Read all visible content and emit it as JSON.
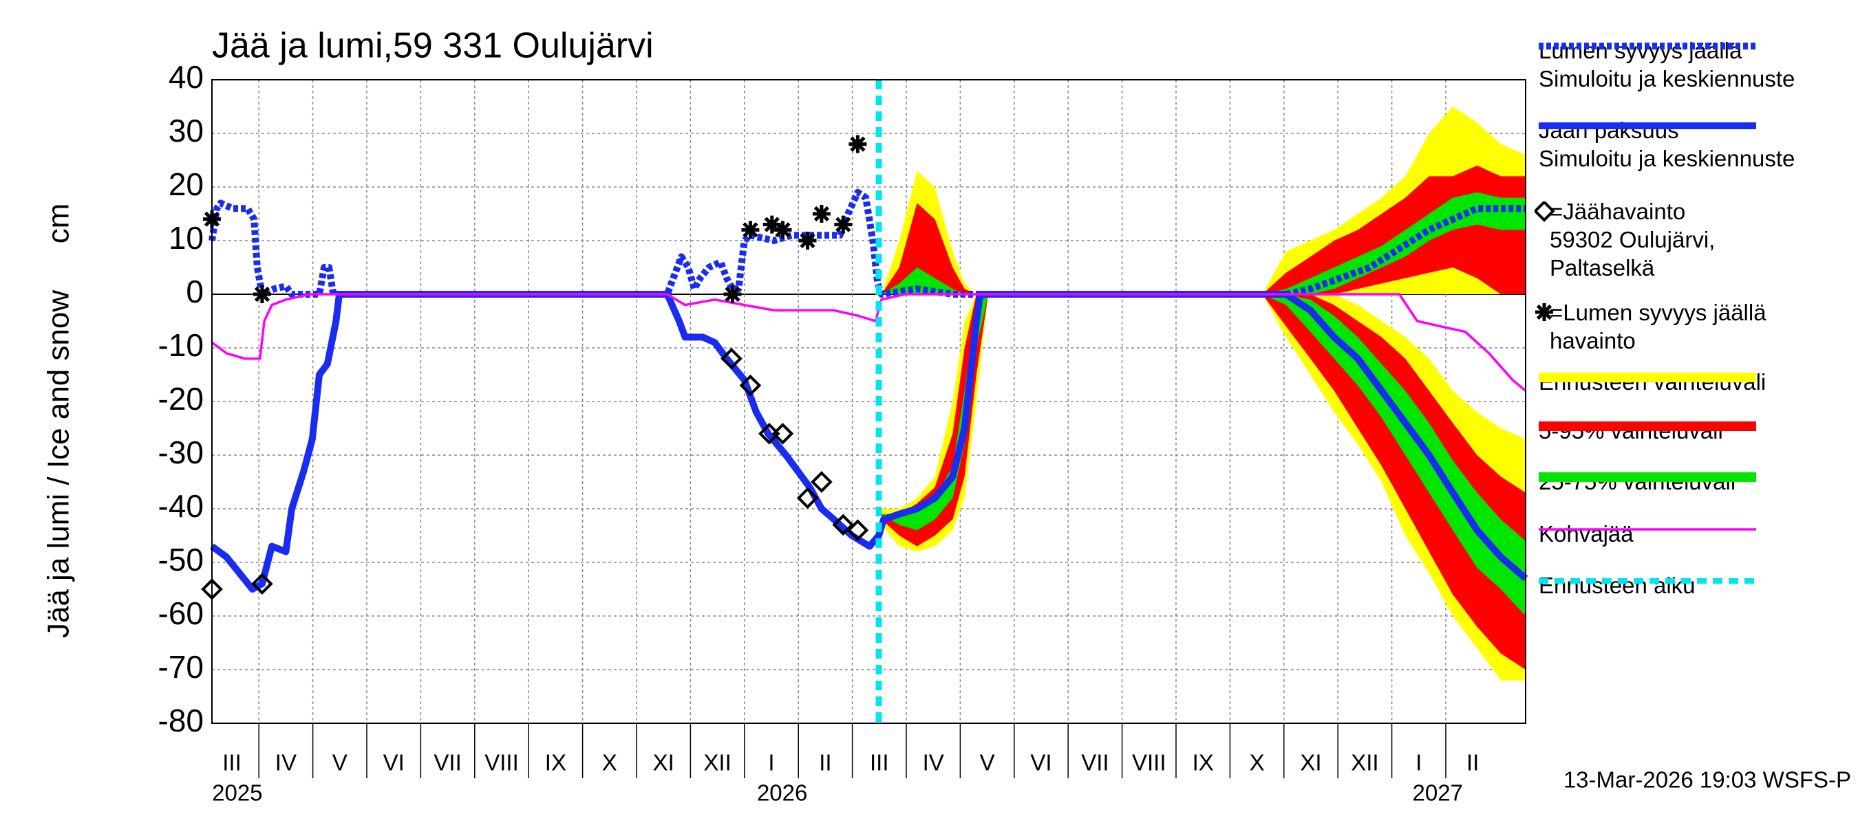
{
  "chart_data": {
    "type": "line",
    "title": "Jää ja lumi,59 331 Oulujärvi",
    "y_label": "Jää ja lumi / Ice and snow",
    "y_unit": "cm",
    "ylim": [
      -80,
      40
    ],
    "yticks": [
      -80,
      -70,
      -60,
      -50,
      -40,
      -30,
      -20,
      -10,
      0,
      10,
      20,
      30,
      40
    ],
    "xlim": [
      0.13,
      24.48
    ],
    "grid": true,
    "xticks": [
      {
        "value": 0.5,
        "label": "III"
      },
      {
        "value": 1.5,
        "label": "IV"
      },
      {
        "value": 2.5,
        "label": "V"
      },
      {
        "value": 3.5,
        "label": "VI"
      },
      {
        "value": 4.5,
        "label": "VII"
      },
      {
        "value": 5.5,
        "label": "VIII"
      },
      {
        "value": 6.5,
        "label": "IX"
      },
      {
        "value": 7.5,
        "label": "X"
      },
      {
        "value": 8.5,
        "label": "XI"
      },
      {
        "value": 9.5,
        "label": "XII"
      },
      {
        "value": 10.5,
        "label": "I"
      },
      {
        "value": 11.5,
        "label": "II"
      },
      {
        "value": 12.5,
        "label": "III"
      },
      {
        "value": 13.5,
        "label": "IV"
      },
      {
        "value": 14.5,
        "label": "V"
      },
      {
        "value": 15.5,
        "label": "VI"
      },
      {
        "value": 16.5,
        "label": "VII"
      },
      {
        "value": 17.5,
        "label": "VIII"
      },
      {
        "value": 18.5,
        "label": "IX"
      },
      {
        "value": 19.5,
        "label": "X"
      },
      {
        "value": 20.5,
        "label": "XI"
      },
      {
        "value": 21.5,
        "label": "XII"
      },
      {
        "value": 22.5,
        "label": "I"
      },
      {
        "value": 23.5,
        "label": "II"
      }
    ],
    "years": [
      {
        "value": 0.6,
        "label": "2025"
      },
      {
        "value": 10.7,
        "label": "2026"
      },
      {
        "value": 22.85,
        "label": "2027"
      }
    ],
    "bands": [
      {
        "name": "Ennusteen vaihteluväli",
        "color": "#ffff00",
        "segments": [
          {
            "x": [
              12.54,
              12.87,
              13.2,
              13.53,
              13.86,
              14.08,
              14.3,
              14.52
            ],
            "low": [
              -43,
              -47,
              -48,
              -47,
              -44,
              -38,
              -20,
              0
            ],
            "high": [
              -40,
              -40,
              -38,
              -34,
              -20,
              -5,
              0,
              0
            ]
          },
          {
            "x": [
              12.54,
              12.87,
              13.2,
              13.53,
              13.86,
              14.08,
              14.3,
              14.52
            ],
            "low": [
              0,
              0,
              0,
              0,
              0,
              0,
              0,
              0
            ],
            "high": [
              0,
              10,
              23,
              20,
              8,
              2,
              0,
              0
            ]
          },
          {
            "x": [
              19.6,
              20.04,
              20.49,
              20.93,
              21.37,
              21.81,
              22.25,
              22.69,
              23.13,
              23.58,
              24.02,
              24.48
            ],
            "low": [
              0,
              -8,
              -15,
              -22,
              -28,
              -35,
              -45,
              -52,
              -60,
              -66,
              -72,
              -72
            ],
            "high": [
              0,
              0,
              0,
              0,
              -2,
              -5,
              -8,
              -12,
              -18,
              -22,
              -25,
              -27
            ]
          },
          {
            "x": [
              19.6,
              20.04,
              20.49,
              20.93,
              21.37,
              21.81,
              22.25,
              22.69,
              23.13,
              23.58,
              24.02,
              24.48
            ],
            "low": [
              0,
              0,
              0,
              0,
              0,
              0,
              0,
              0,
              0,
              0,
              0,
              0
            ],
            "high": [
              0,
              8,
              10,
              12,
              15,
              18,
              22,
              30,
              35,
              32,
              28,
              26
            ]
          }
        ]
      },
      {
        "name": "5-95% vaihteluväli",
        "color": "#ff0000",
        "segments": [
          {
            "x": [
              12.54,
              12.87,
              13.2,
              13.53,
              13.86,
              14.08,
              14.3,
              14.52
            ],
            "low": [
              -42,
              -45,
              -47,
              -45,
              -42,
              -34,
              -15,
              0
            ],
            "high": [
              -41,
              -41,
              -39,
              -36,
              -26,
              -10,
              0,
              0
            ]
          },
          {
            "x": [
              12.54,
              12.87,
              13.2,
              13.53,
              13.86,
              14.08,
              14.3,
              14.52
            ],
            "low": [
              0,
              0,
              0,
              0,
              0,
              0,
              0,
              0
            ],
            "high": [
              0,
              5,
              17,
              14,
              5,
              1,
              0,
              0
            ]
          },
          {
            "x": [
              19.6,
              20.04,
              20.49,
              20.93,
              21.37,
              21.81,
              22.25,
              22.69,
              23.13,
              23.58,
              24.02,
              24.48
            ],
            "low": [
              0,
              -6,
              -12,
              -18,
              -25,
              -32,
              -40,
              -48,
              -56,
              -62,
              -67,
              -70
            ],
            "high": [
              0,
              0,
              0,
              -2,
              -5,
              -8,
              -12,
              -18,
              -24,
              -30,
              -34,
              -37
            ]
          },
          {
            "x": [
              19.6,
              20.04,
              20.49,
              20.93,
              21.37,
              21.81,
              22.25,
              22.69,
              23.13,
              23.58,
              24.02,
              24.48
            ],
            "low": [
              0,
              0,
              0,
              0,
              1,
              2,
              3,
              4,
              5,
              3,
              0,
              0
            ],
            "high": [
              0,
              4,
              7,
              10,
              12,
              15,
              18,
              22,
              22,
              24,
              22,
              22
            ]
          }
        ]
      },
      {
        "name": "25-75% vaihteluväli",
        "color": "#00e600",
        "segments": [
          {
            "x": [
              12.54,
              12.87,
              13.2,
              13.53,
              13.86,
              14.08,
              14.3,
              14.52
            ],
            "low": [
              -41,
              -43,
              -44,
              -42,
              -38,
              -28,
              -10,
              0
            ],
            "high": [
              -41,
              -41,
              -40,
              -38,
              -32,
              -18,
              -2,
              0
            ]
          },
          {
            "x": [
              12.54,
              12.87,
              13.2,
              13.53,
              13.86,
              14.08,
              14.3,
              14.52
            ],
            "low": [
              0,
              0,
              0,
              0,
              0,
              0,
              0,
              0
            ],
            "high": [
              0,
              2,
              5,
              3,
              1,
              0,
              0,
              0
            ]
          },
          {
            "x": [
              19.6,
              20.04,
              20.49,
              20.93,
              21.37,
              21.81,
              22.25,
              22.69,
              23.13,
              23.58,
              24.02,
              24.48
            ],
            "low": [
              0,
              -2,
              -7,
              -12,
              -17,
              -23,
              -30,
              -37,
              -44,
              -51,
              -55,
              -60
            ],
            "high": [
              0,
              0,
              -1,
              -4,
              -8,
              -13,
              -18,
              -24,
              -31,
              -37,
              -42,
              -46
            ]
          },
          {
            "x": [
              19.6,
              20.04,
              20.49,
              20.93,
              21.37,
              21.81,
              22.25,
              22.69,
              23.13,
              23.58,
              24.02,
              24.48
            ],
            "low": [
              0,
              0,
              0,
              1,
              3,
              5,
              7,
              10,
              12,
              13,
              12,
              12
            ],
            "high": [
              0,
              1,
              3,
              5,
              7,
              9,
              12,
              15,
              18,
              19,
              18,
              18
            ]
          }
        ]
      }
    ],
    "series": [
      {
        "name": "Lumen syvyys jäällä\nSimuloitu ja keskiennuste",
        "color": "#1a2cf0",
        "style": "dotted",
        "x": [
          0.13,
          0.22,
          0.29,
          0.51,
          0.79,
          0.91,
          0.97,
          1.06,
          1.28,
          1.5,
          1.61,
          2.12,
          2.21,
          2.3,
          2.38,
          8.57,
          8.83,
          8.96,
          9.07,
          9.18,
          9.34,
          9.56,
          9.67,
          9.78,
          9.89,
          10.0,
          10.11,
          10.55,
          10.88,
          11.43,
          11.77,
          11.92,
          12.1,
          12.25,
          12.38,
          12.47,
          12.54,
          13.2,
          13.86,
          20.04,
          20.49,
          21.59,
          22.69,
          23.58,
          24.48
        ],
        "values": [
          10,
          16,
          17,
          16,
          16,
          14,
          5,
          0,
          1,
          1.5,
          0,
          0,
          5,
          5,
          0,
          0,
          7,
          5,
          1,
          3,
          5,
          6,
          3,
          1,
          1,
          10,
          11,
          10,
          11,
          11,
          11,
          15,
          19,
          18,
          10,
          2,
          0,
          1,
          0,
          0,
          1,
          5,
          12,
          16,
          16
        ]
      },
      {
        "name": "Jään paksuus\nSimuloitu ja keskiennuste",
        "color": "#1a2cf0",
        "style": "solid",
        "x": [
          0.13,
          0.4,
          0.88,
          1.06,
          1.24,
          1.5,
          1.61,
          1.83,
          1.99,
          2.12,
          2.27,
          2.43,
          2.49,
          8.57,
          8.79,
          8.9,
          9.23,
          9.45,
          9.67,
          10.0,
          10.22,
          10.44,
          10.77,
          10.99,
          11.21,
          11.43,
          11.66,
          11.99,
          12.32,
          12.49,
          12.58,
          12.87,
          13.2,
          13.53,
          13.86,
          14.08,
          14.19,
          14.3,
          14.37,
          19.6,
          20.04,
          20.49,
          20.93,
          21.37,
          21.81,
          22.25,
          22.69,
          23.13,
          23.58,
          24.02,
          24.48
        ],
        "values": [
          -47,
          -49,
          -55,
          -54,
          -47,
          -48,
          -40,
          -33,
          -27,
          -15,
          -13,
          -5,
          0,
          0,
          -5,
          -8,
          -8,
          -9,
          -12,
          -16,
          -22,
          -26,
          -30,
          -33,
          -36,
          -40,
          -42,
          -45,
          -47,
          -45,
          -42,
          -41,
          -40,
          -38,
          -34,
          -25,
          -15,
          -5,
          0,
          0,
          0,
          -3,
          -8,
          -12,
          -18,
          -24,
          -30,
          -37,
          -44,
          -49,
          -53
        ]
      },
      {
        "name": "Kohvajää",
        "color": "#ff00ff",
        "style": "thin",
        "x": [
          0.13,
          0.4,
          0.73,
          1.02,
          1.1,
          1.24,
          1.5,
          1.94,
          8.57,
          8.9,
          9.45,
          10.0,
          10.55,
          11.66,
          12.1,
          12.43,
          12.54,
          12.98,
          22.14,
          22.47,
          22.91,
          23.36,
          23.8,
          24.24,
          24.48
        ],
        "values": [
          -9,
          -11,
          -12,
          -12,
          -5,
          -2,
          -1,
          0,
          0,
          -2,
          -1,
          -2,
          -3,
          -3,
          -4,
          -5,
          -1,
          0,
          0,
          -5,
          -6,
          -7,
          -11,
          -16,
          -18
        ]
      }
    ],
    "observations": [
      {
        "name": "=Jäähavainto\n59302 Oulujärvi, Paltaselkä",
        "marker": "diamond",
        "color": "#000000",
        "x": [
          0.13,
          1.06,
          9.76,
          10.11,
          10.46,
          10.71,
          11.17,
          11.43,
          11.83,
          12.1
        ],
        "values": [
          -55,
          -54,
          -12,
          -17,
          -26,
          -26,
          -38,
          -35,
          -43,
          -44
        ]
      },
      {
        "name": "=Lumen syvyys jäällä havainto",
        "marker": "star",
        "color": "#000000",
        "x": [
          0.13,
          1.06,
          9.78,
          10.11,
          10.51,
          10.71,
          11.17,
          11.43,
          11.83,
          12.1
        ],
        "values": [
          14,
          0,
          0,
          12,
          13,
          12,
          10,
          15,
          13,
          28
        ]
      }
    ],
    "forecast_start": {
      "name": "Ennusteen alku",
      "color": "#00e5ee",
      "x": 12.49
    },
    "footer": "13-Mar-2026 19:03 WSFS-P"
  }
}
